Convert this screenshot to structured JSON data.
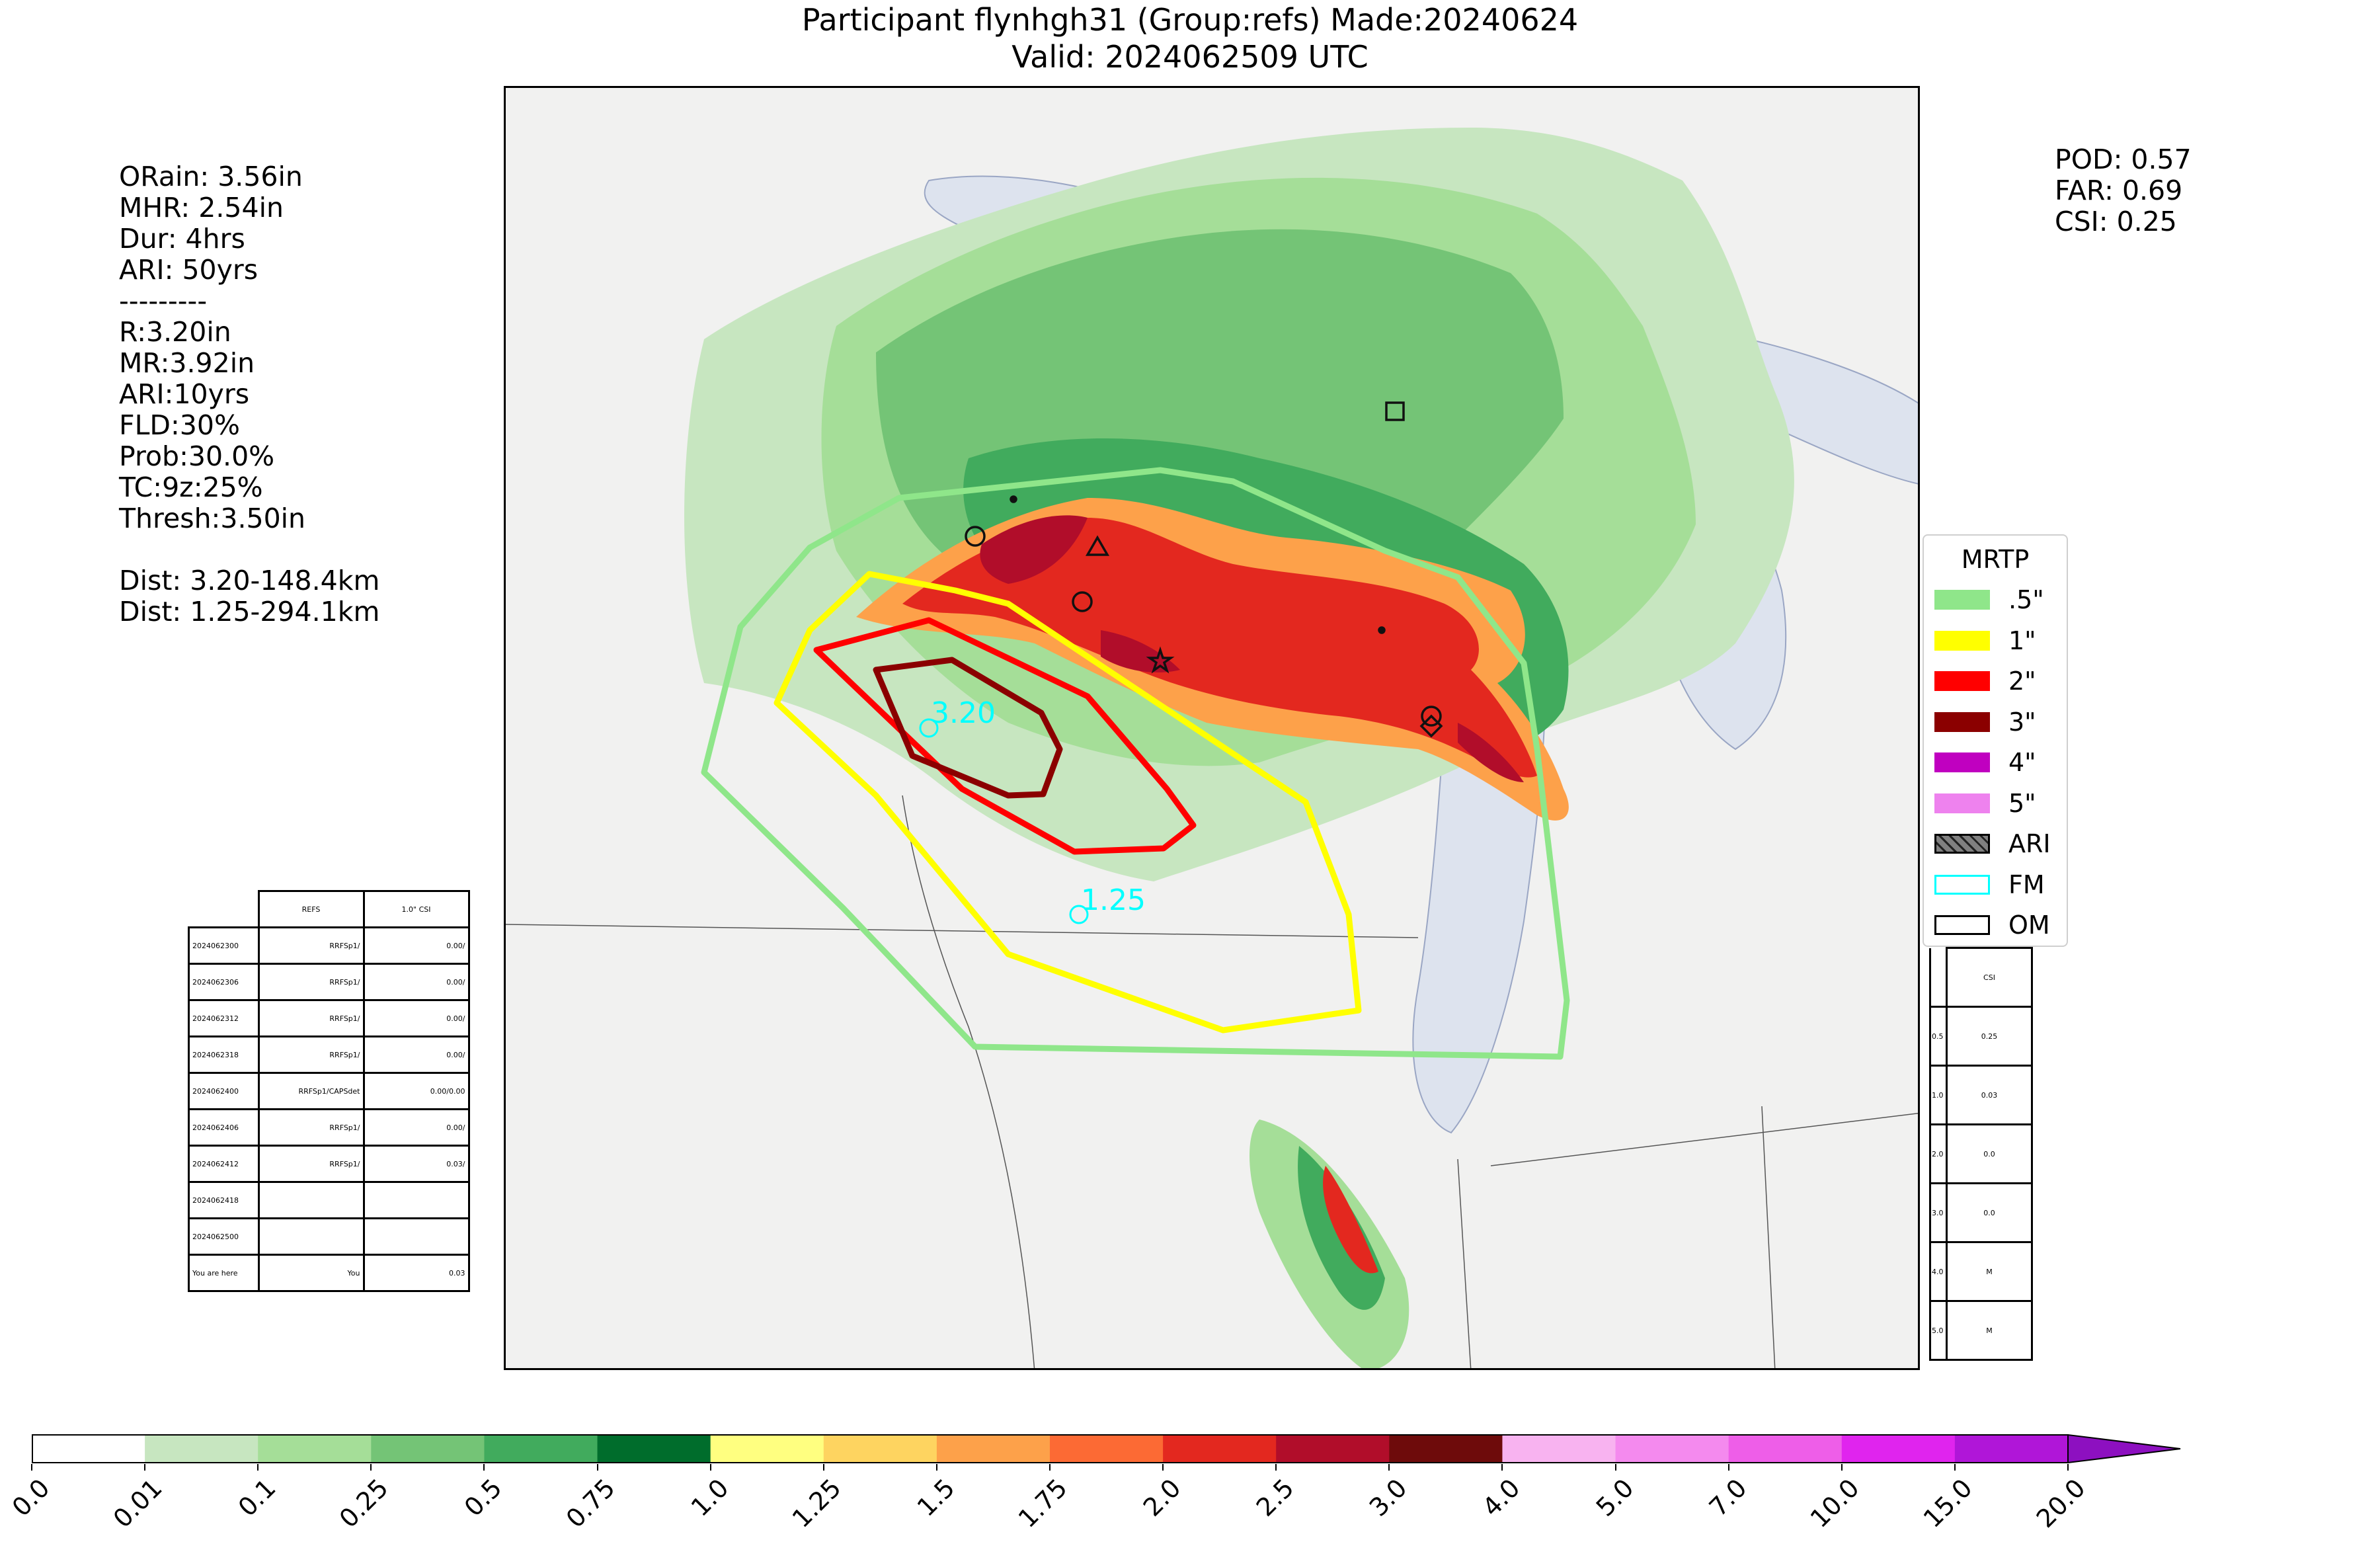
{
  "title": {
    "line1": "Participant flynhgh31 (Group:refs) Made:20240624",
    "line2": "Valid: 2024062509 UTC"
  },
  "left_stats": [
    "ORain: 3.56in",
    "MHR: 2.54in",
    "Dur: 4hrs",
    "ARI: 50yrs",
    "---------",
    "R:3.20in",
    "MR:3.92in",
    "ARI:10yrs",
    "FLD:30%",
    "Prob:30.0%",
    "TC:9z:25%",
    "Thresh:3.50in",
    "",
    "Dist: 3.20-148.4km",
    "Dist: 1.25-294.1km"
  ],
  "right_stats": {
    "pod": "POD: 0.57",
    "far": "FAR: 0.69",
    "csi": "CSI: 0.25"
  },
  "map": {
    "fm_labels": [
      "3.20",
      "1.25"
    ],
    "colors": {
      "contour_05": "#8fe68a",
      "contour_1": "#ffff00",
      "contour_2": "#ff0000",
      "contour_3": "#8b0000",
      "fm": "#00ffff",
      "lakes": "#dde3ee"
    }
  },
  "legend": {
    "title": "MRTP",
    "items": [
      {
        "label": ".5\"",
        "color": "#8fe68a",
        "kind": "fill"
      },
      {
        "label": "1\"",
        "color": "#ffff00",
        "kind": "fill"
      },
      {
        "label": "2\"",
        "color": "#ff0000",
        "kind": "fill"
      },
      {
        "label": "3\"",
        "color": "#8b0000",
        "kind": "fill"
      },
      {
        "label": "4\"",
        "color": "#c000c0",
        "kind": "fill"
      },
      {
        "label": "5\"",
        "color": "#ee82ee",
        "kind": "fill"
      },
      {
        "label": "ARI",
        "color": "#808080",
        "kind": "hatch"
      },
      {
        "label": "FM",
        "color": "#00ffff",
        "kind": "outline"
      },
      {
        "label": "OM",
        "color": "#000000",
        "kind": "outline"
      }
    ]
  },
  "left_table": {
    "header": [
      "REFS",
      "1.0\" CSI"
    ],
    "rows": [
      [
        "2024062300",
        "RRFSp1/",
        "0.00/"
      ],
      [
        "2024062306",
        "RRFSp1/",
        "0.00/"
      ],
      [
        "2024062312",
        "RRFSp1/",
        "0.00/"
      ],
      [
        "2024062318",
        "RRFSp1/",
        "0.00/"
      ],
      [
        "2024062400",
        "RRFSp1/CAPSdet",
        "0.00/0.00"
      ],
      [
        "2024062406",
        "RRFSp1/",
        "0.00/"
      ],
      [
        "2024062412",
        "RRFSp1/",
        "0.03/"
      ],
      [
        "2024062418",
        "",
        ""
      ],
      [
        "2024062500",
        "",
        ""
      ],
      [
        "You are here",
        "You",
        "0.03"
      ]
    ]
  },
  "right_table": {
    "header": "CSI",
    "rows": [
      [
        "0.5",
        "0.25"
      ],
      [
        "1.0",
        "0.03"
      ],
      [
        "2.0",
        "0.0"
      ],
      [
        "3.0",
        "0.0"
      ],
      [
        "4.0",
        "M"
      ],
      [
        "5.0",
        "M"
      ]
    ]
  },
  "colorbar": {
    "labels": [
      "0.0",
      "0.01",
      "0.1",
      "0.25",
      "0.5",
      "0.75",
      "1.0",
      "1.25",
      "1.5",
      "1.75",
      "2.0",
      "2.5",
      "3.0",
      "4.0",
      "5.0",
      "7.0",
      "10.0",
      "15.0",
      "20.0"
    ],
    "colors": [
      "#ffffff",
      "#c7e6c0",
      "#a5de98",
      "#74c476",
      "#41ab5d",
      "#006d2c",
      "#ffff80",
      "#fed460",
      "#fda14a",
      "#fc6a34",
      "#e3281f",
      "#b10d2a",
      "#6e0b0b",
      "#f8b3f0",
      "#f48aee",
      "#ee5ee8",
      "#e024ee",
      "#b016d8",
      "#8d10c0"
    ]
  }
}
